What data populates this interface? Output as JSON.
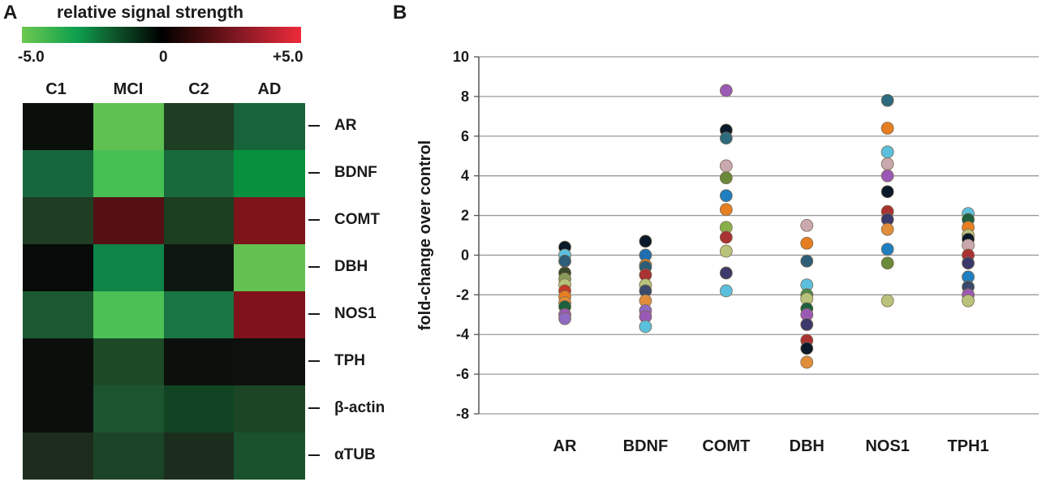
{
  "panel_a": {
    "letter": "A",
    "colorbar": {
      "title": "relative signal strength",
      "min_label": "-5.0",
      "mid_label": "0",
      "max_label": "+5.0"
    },
    "columns": [
      "C1",
      "MCI",
      "C2",
      "AD"
    ],
    "rows": [
      "AR",
      "BDNF",
      "COMT",
      "DBH",
      "NOS1",
      "TPH",
      "β-actin",
      "αTUB"
    ],
    "cells": [
      [
        "#0b0f0c",
        "#5fc151",
        "#1d3e22",
        "#17643a"
      ],
      [
        "#17673d",
        "#46bf53",
        "#186a3d",
        "#07913e"
      ],
      [
        "#1e3d22",
        "#541013",
        "#1c3e21",
        "#7e151b"
      ],
      [
        "#070a08",
        "#0e8449",
        "#0f1711",
        "#62c150"
      ],
      [
        "#1c5932",
        "#4cc055",
        "#197543",
        "#7f121b"
      ],
      [
        "#0b0f0c",
        "#1c4a27",
        "#0c100d",
        "#0c110d"
      ],
      [
        "#0b0f0c",
        "#1c5430",
        "#114422",
        "#1c4526"
      ],
      [
        "#1e2c1e",
        "#1c4427",
        "#1b2d1d",
        "#19522d"
      ]
    ]
  },
  "panel_b": {
    "letter": "B"
  },
  "chart_data": {
    "type": "scatter",
    "title": "",
    "xlabel": "",
    "ylabel": "fold-change over control",
    "categories": [
      "AR",
      "BDNF",
      "COMT",
      "DBH",
      "NOS1",
      "TPH1"
    ],
    "ylim": [
      -8,
      10
    ],
    "yticks": [
      -8,
      -6,
      -4,
      -2,
      0,
      2,
      4,
      6,
      8,
      10
    ],
    "grid": true,
    "points": [
      {
        "cat": "AR",
        "y": 0.4,
        "color": "#0a1a2a"
      },
      {
        "cat": "AR",
        "y": 0.0,
        "color": "#5bc0de"
      },
      {
        "cat": "AR",
        "y": -0.3,
        "color": "#2e5d78"
      },
      {
        "cat": "AR",
        "y": -0.9,
        "color": "#3b4a2a"
      },
      {
        "cat": "AR",
        "y": -1.2,
        "color": "#8a9a5b"
      },
      {
        "cat": "AR",
        "y": -1.5,
        "color": "#b8c27a"
      },
      {
        "cat": "AR",
        "y": -1.8,
        "color": "#c0392b"
      },
      {
        "cat": "AR",
        "y": -2.1,
        "color": "#e67e22"
      },
      {
        "cat": "AR",
        "y": -2.4,
        "color": "#e08e3b"
      },
      {
        "cat": "AR",
        "y": -2.6,
        "color": "#1f5f3f"
      },
      {
        "cat": "AR",
        "y": -3.0,
        "color": "#9b59b6"
      },
      {
        "cat": "AR",
        "y": -3.2,
        "color": "#8e6bc2"
      },
      {
        "cat": "BDNF",
        "y": 0.7,
        "color": "#0a1a2a"
      },
      {
        "cat": "BDNF",
        "y": 0.0,
        "color": "#1f6fb0"
      },
      {
        "cat": "BDNF",
        "y": -0.5,
        "color": "#e67e22"
      },
      {
        "cat": "BDNF",
        "y": -0.6,
        "color": "#2e5d78"
      },
      {
        "cat": "BDNF",
        "y": -1.0,
        "color": "#a93232"
      },
      {
        "cat": "BDNF",
        "y": -1.5,
        "color": "#b8c27a"
      },
      {
        "cat": "BDNF",
        "y": -1.8,
        "color": "#3b4a6a"
      },
      {
        "cat": "BDNF",
        "y": -2.3,
        "color": "#e08e3b"
      },
      {
        "cat": "BDNF",
        "y": -2.8,
        "color": "#8e6bc2"
      },
      {
        "cat": "BDNF",
        "y": -3.1,
        "color": "#9b59b6"
      },
      {
        "cat": "BDNF",
        "y": -3.6,
        "color": "#5bc0de"
      },
      {
        "cat": "COMT",
        "y": 8.3,
        "color": "#9b59b6"
      },
      {
        "cat": "COMT",
        "y": 6.3,
        "color": "#0a1a2a"
      },
      {
        "cat": "COMT",
        "y": 5.9,
        "color": "#2e6a80"
      },
      {
        "cat": "COMT",
        "y": 4.5,
        "color": "#c9a8b0"
      },
      {
        "cat": "COMT",
        "y": 3.9,
        "color": "#6a8a3a"
      },
      {
        "cat": "COMT",
        "y": 3.0,
        "color": "#1f7fc0"
      },
      {
        "cat": "COMT",
        "y": 2.3,
        "color": "#e67e22"
      },
      {
        "cat": "COMT",
        "y": 1.4,
        "color": "#8ab04a"
      },
      {
        "cat": "COMT",
        "y": 0.9,
        "color": "#a93232"
      },
      {
        "cat": "COMT",
        "y": 0.2,
        "color": "#b8c27a"
      },
      {
        "cat": "COMT",
        "y": -0.9,
        "color": "#3b3a6a"
      },
      {
        "cat": "COMT",
        "y": -1.8,
        "color": "#5bc0de"
      },
      {
        "cat": "DBH",
        "y": 1.5,
        "color": "#c9a8b0"
      },
      {
        "cat": "DBH",
        "y": 0.6,
        "color": "#e67e22"
      },
      {
        "cat": "DBH",
        "y": -0.3,
        "color": "#2e5d78"
      },
      {
        "cat": "DBH",
        "y": -1.5,
        "color": "#5bc0de"
      },
      {
        "cat": "DBH",
        "y": -2.0,
        "color": "#4a8a4a"
      },
      {
        "cat": "DBH",
        "y": -2.2,
        "color": "#b8c27a"
      },
      {
        "cat": "DBH",
        "y": -2.7,
        "color": "#1f5f3f"
      },
      {
        "cat": "DBH",
        "y": -3.0,
        "color": "#9b59b6"
      },
      {
        "cat": "DBH",
        "y": -3.5,
        "color": "#3b3a6a"
      },
      {
        "cat": "DBH",
        "y": -4.3,
        "color": "#a93232"
      },
      {
        "cat": "DBH",
        "y": -4.7,
        "color": "#0a1a2a"
      },
      {
        "cat": "DBH",
        "y": -5.4,
        "color": "#e08e3b"
      },
      {
        "cat": "NOS1",
        "y": 7.8,
        "color": "#2e6a80"
      },
      {
        "cat": "NOS1",
        "y": 6.4,
        "color": "#e67e22"
      },
      {
        "cat": "NOS1",
        "y": 5.2,
        "color": "#5bc0de"
      },
      {
        "cat": "NOS1",
        "y": 4.6,
        "color": "#c9a8b0"
      },
      {
        "cat": "NOS1",
        "y": 4.0,
        "color": "#9b59b6"
      },
      {
        "cat": "NOS1",
        "y": 3.2,
        "color": "#0a1a2a"
      },
      {
        "cat": "NOS1",
        "y": 2.2,
        "color": "#a93232"
      },
      {
        "cat": "NOS1",
        "y": 1.8,
        "color": "#3b3a6a"
      },
      {
        "cat": "NOS1",
        "y": 1.3,
        "color": "#e08e3b"
      },
      {
        "cat": "NOS1",
        "y": 0.3,
        "color": "#1f7fc0"
      },
      {
        "cat": "NOS1",
        "y": -0.4,
        "color": "#6a8a3a"
      },
      {
        "cat": "NOS1",
        "y": -2.3,
        "color": "#b8c27a"
      },
      {
        "cat": "TPH1",
        "y": 2.1,
        "color": "#5bc0de"
      },
      {
        "cat": "TPH1",
        "y": 1.8,
        "color": "#1f5f3f"
      },
      {
        "cat": "TPH1",
        "y": 1.4,
        "color": "#e67e22"
      },
      {
        "cat": "TPH1",
        "y": 1.0,
        "color": "#b8c27a"
      },
      {
        "cat": "TPH1",
        "y": 0.8,
        "color": "#0a1a2a"
      },
      {
        "cat": "TPH1",
        "y": 0.5,
        "color": "#c9a8b0"
      },
      {
        "cat": "TPH1",
        "y": 0.0,
        "color": "#a93232"
      },
      {
        "cat": "TPH1",
        "y": -0.4,
        "color": "#3b3a6a"
      },
      {
        "cat": "TPH1",
        "y": -1.1,
        "color": "#1f7fc0"
      },
      {
        "cat": "TPH1",
        "y": -1.6,
        "color": "#3b4a6a"
      },
      {
        "cat": "TPH1",
        "y": -2.0,
        "color": "#9b59b6"
      },
      {
        "cat": "TPH1",
        "y": -2.3,
        "color": "#b8c27a"
      }
    ]
  }
}
